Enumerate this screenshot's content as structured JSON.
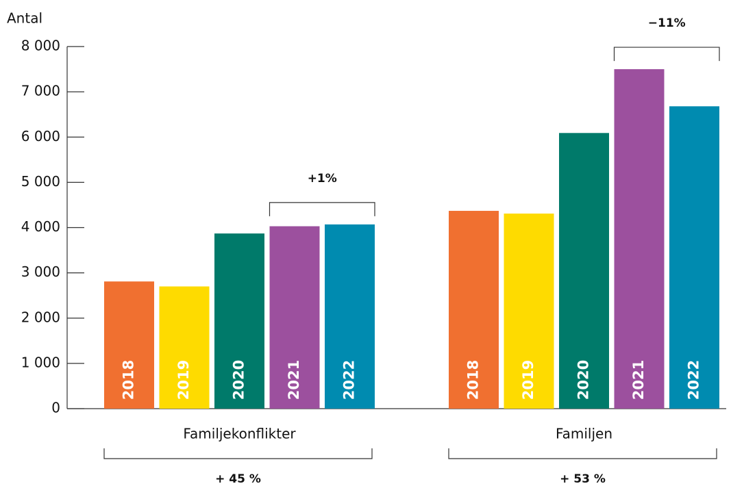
{
  "chart_data": {
    "type": "bar",
    "y_axis_label": "Antal",
    "categories": [
      "Familjekonflikter",
      "Familjen"
    ],
    "series": [
      {
        "name": "2018",
        "color": "#f07030",
        "values": [
          2810,
          4370
        ]
      },
      {
        "name": "2019",
        "color": "#fedb00",
        "values": [
          2700,
          4310
        ]
      },
      {
        "name": "2020",
        "color": "#007a6a",
        "values": [
          3870,
          6090
        ]
      },
      {
        "name": "2021",
        "color": "#9c509e",
        "values": [
          4030,
          7500
        ]
      },
      {
        "name": "2022",
        "color": "#008bb0",
        "values": [
          4070,
          6680
        ]
      }
    ],
    "ylim": [
      0,
      8000
    ],
    "yticks": [
      0,
      {
        "value": 1000,
        "label": "1 000"
      },
      {
        "value": 2000,
        "label": "2 000"
      },
      {
        "value": 3000,
        "label": "3 000"
      },
      {
        "value": 4000,
        "label": "4 000"
      },
      {
        "value": 5000,
        "label": "5 000"
      },
      {
        "value": 6000,
        "label": "6 000"
      },
      {
        "value": 7000,
        "label": "7 000"
      },
      {
        "value": 8000,
        "label": "8 000"
      }
    ],
    "annotations": [
      "+1%",
      "−11%"
    ],
    "group_changes": [
      "+ 45 %",
      "+ 53 %"
    ],
    "grid": false
  }
}
